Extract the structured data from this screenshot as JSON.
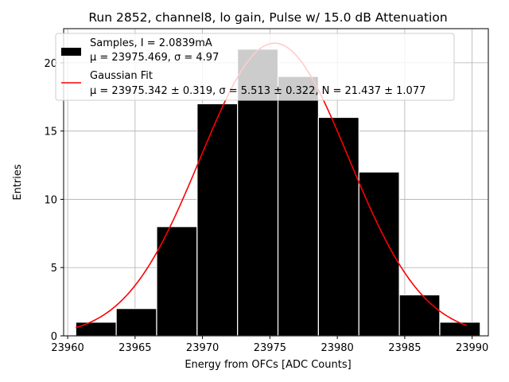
{
  "chart_data": {
    "type": "bar",
    "title": "Run 2852, channel8, lo gain, Pulse w/ 15.0 dB Attenuation",
    "xlabel": "Energy from OFCs [ADC Counts]",
    "ylabel": "Entries",
    "xlim": [
      23959.7,
      23991.2
    ],
    "ylim": [
      0,
      22.5
    ],
    "xticks": [
      23960,
      23965,
      23970,
      23975,
      23980,
      23985,
      23990
    ],
    "yticks": [
      0,
      5,
      10,
      15,
      20
    ],
    "grid": true,
    "legend_position": "top-left",
    "bar_color": "#000000",
    "bar_edge_color": "#ffffff",
    "fit_color": "#ff0000",
    "grid_color": "#b0b0b0",
    "bins": [
      {
        "left": 23960.6,
        "right": 23963.6,
        "count": 1
      },
      {
        "left": 23963.6,
        "right": 23966.6,
        "count": 2
      },
      {
        "left": 23966.6,
        "right": 23969.6,
        "count": 8
      },
      {
        "left": 23969.6,
        "right": 23972.6,
        "count": 17
      },
      {
        "left": 23972.6,
        "right": 23975.6,
        "count": 21
      },
      {
        "left": 23975.6,
        "right": 23978.6,
        "count": 19
      },
      {
        "left": 23978.6,
        "right": 23981.6,
        "count": 16
      },
      {
        "left": 23981.6,
        "right": 23984.6,
        "count": 12
      },
      {
        "left": 23984.6,
        "right": 23987.6,
        "count": 3
      },
      {
        "left": 23987.6,
        "right": 23990.6,
        "count": 1
      }
    ],
    "fit": {
      "mu": 23975.342,
      "sigma": 5.513,
      "N": 21.437,
      "x_range": [
        23960.6,
        23989.6
      ]
    },
    "legend": [
      {
        "kind": "samples",
        "line1": "Samples, I = 2.0839mA",
        "line2": "μ = 23975.469, σ = 4.97"
      },
      {
        "kind": "fit",
        "line1": "Gaussian Fit",
        "line2": "μ = 23975.342 ± 0.319, σ = 5.513 ± 0.322, N = 21.437 ± 1.077"
      }
    ]
  }
}
